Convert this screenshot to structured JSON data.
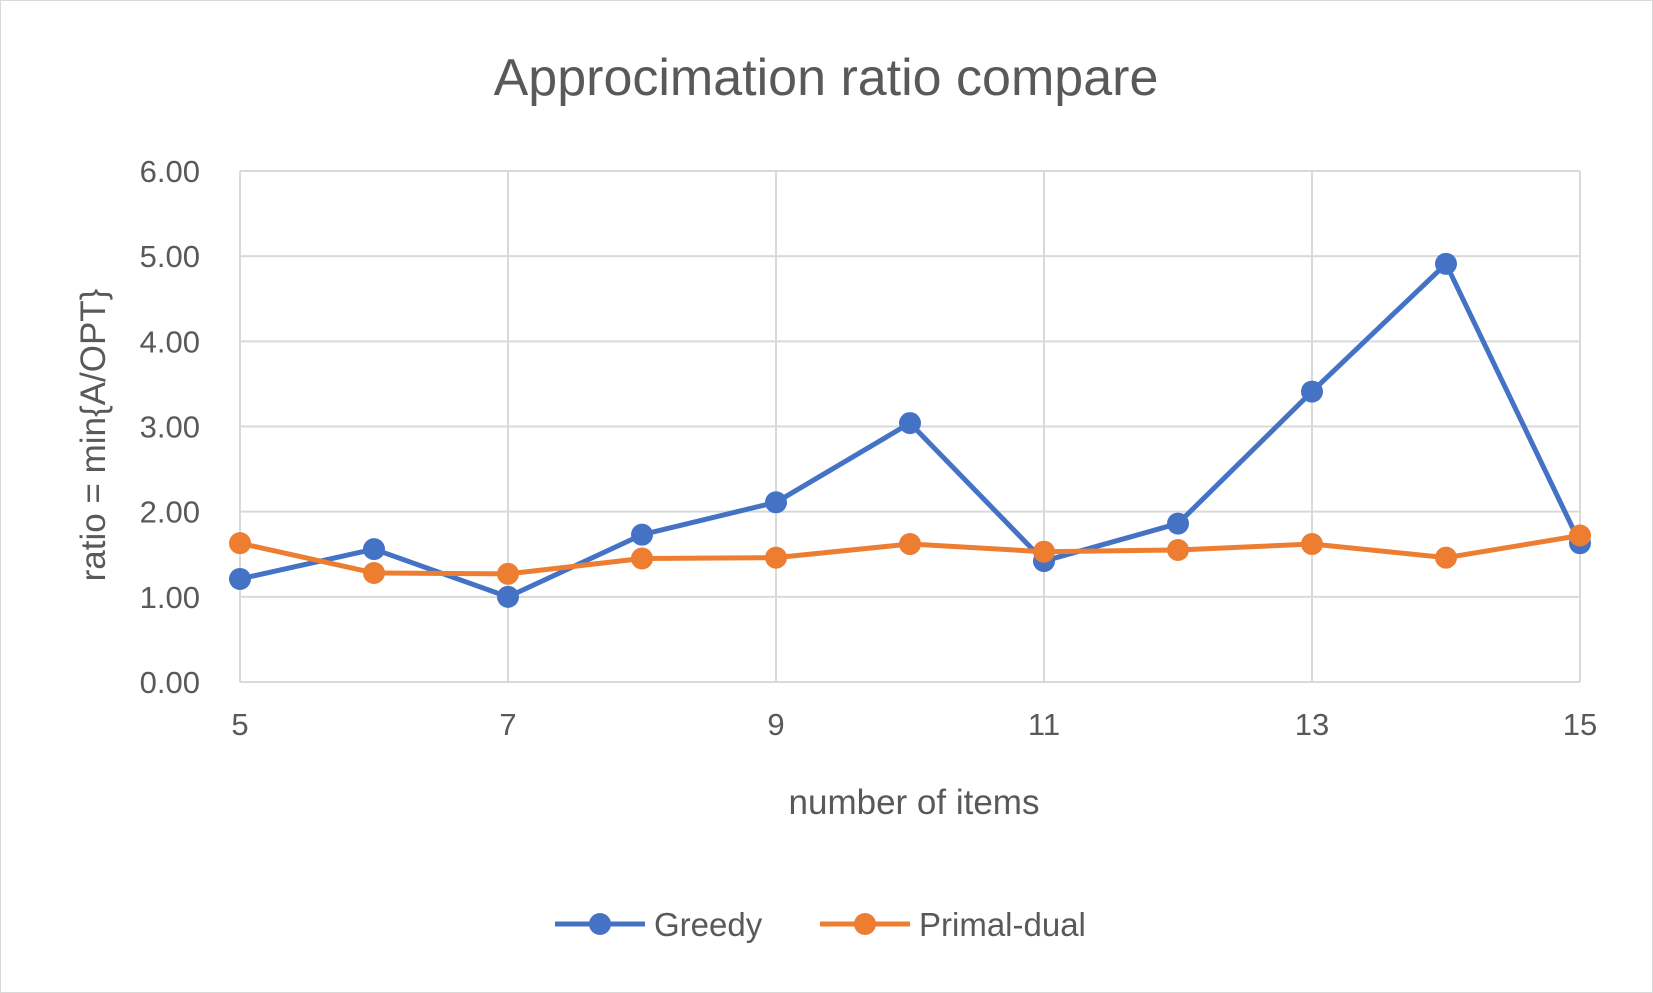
{
  "chart_data": {
    "type": "line",
    "title": "Approcimation ratio compare",
    "xlabel": "number of items",
    "ylabel": "ratio = min{A/OPT}",
    "x": [
      5,
      6,
      7,
      8,
      9,
      10,
      11,
      12,
      13,
      14,
      15
    ],
    "xlim": [
      5,
      15
    ],
    "x_ticks": [
      "5",
      "7",
      "9",
      "11",
      "13",
      "15"
    ],
    "ylim": [
      0,
      6
    ],
    "y_ticks": [
      "0.00",
      "1.00",
      "2.00",
      "3.00",
      "4.00",
      "5.00",
      "6.00"
    ],
    "grid": true,
    "legend_position": "bottom",
    "series": [
      {
        "name": "Greedy",
        "color": "#4472C4",
        "values": [
          1.21,
          1.56,
          1.0,
          1.73,
          2.11,
          3.04,
          1.42,
          1.86,
          3.41,
          4.91,
          1.63
        ]
      },
      {
        "name": "Primal-dual",
        "color": "#ED7D31",
        "values": [
          1.63,
          1.28,
          1.27,
          1.45,
          1.46,
          1.62,
          1.53,
          1.55,
          1.62,
          1.46,
          1.72
        ]
      }
    ]
  }
}
